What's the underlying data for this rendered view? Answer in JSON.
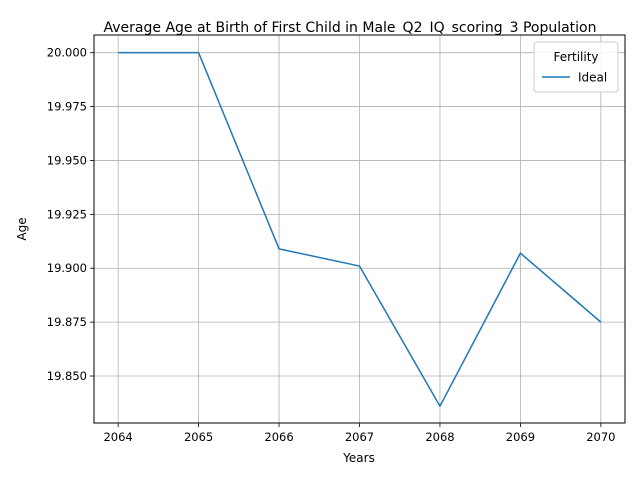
{
  "chart_data": {
    "type": "line",
    "title": "Average Age at Birth of First Child in Male_Q2_IQ_scoring_3 Population",
    "xlabel": "Years",
    "ylabel": "Age",
    "x": [
      2064,
      2065,
      2066,
      2067,
      2068,
      2069,
      2070
    ],
    "x_ticks": [
      "2064",
      "2065",
      "2066",
      "2067",
      "2068",
      "2069",
      "2070"
    ],
    "y_ticks": [
      "19.850",
      "19.875",
      "19.900",
      "19.925",
      "19.950",
      "19.975",
      "20.000"
    ],
    "xlim": [
      2063.7,
      2070.3
    ],
    "ylim": [
      19.8282,
      20.0082
    ],
    "grid": true,
    "legend": {
      "title": "Fertility",
      "placement": "top-right"
    },
    "series": [
      {
        "name": "Ideal",
        "color": "#1f77b4",
        "values": [
          20.0,
          20.0,
          19.909,
          19.901,
          19.836,
          19.907,
          19.875
        ]
      }
    ]
  }
}
